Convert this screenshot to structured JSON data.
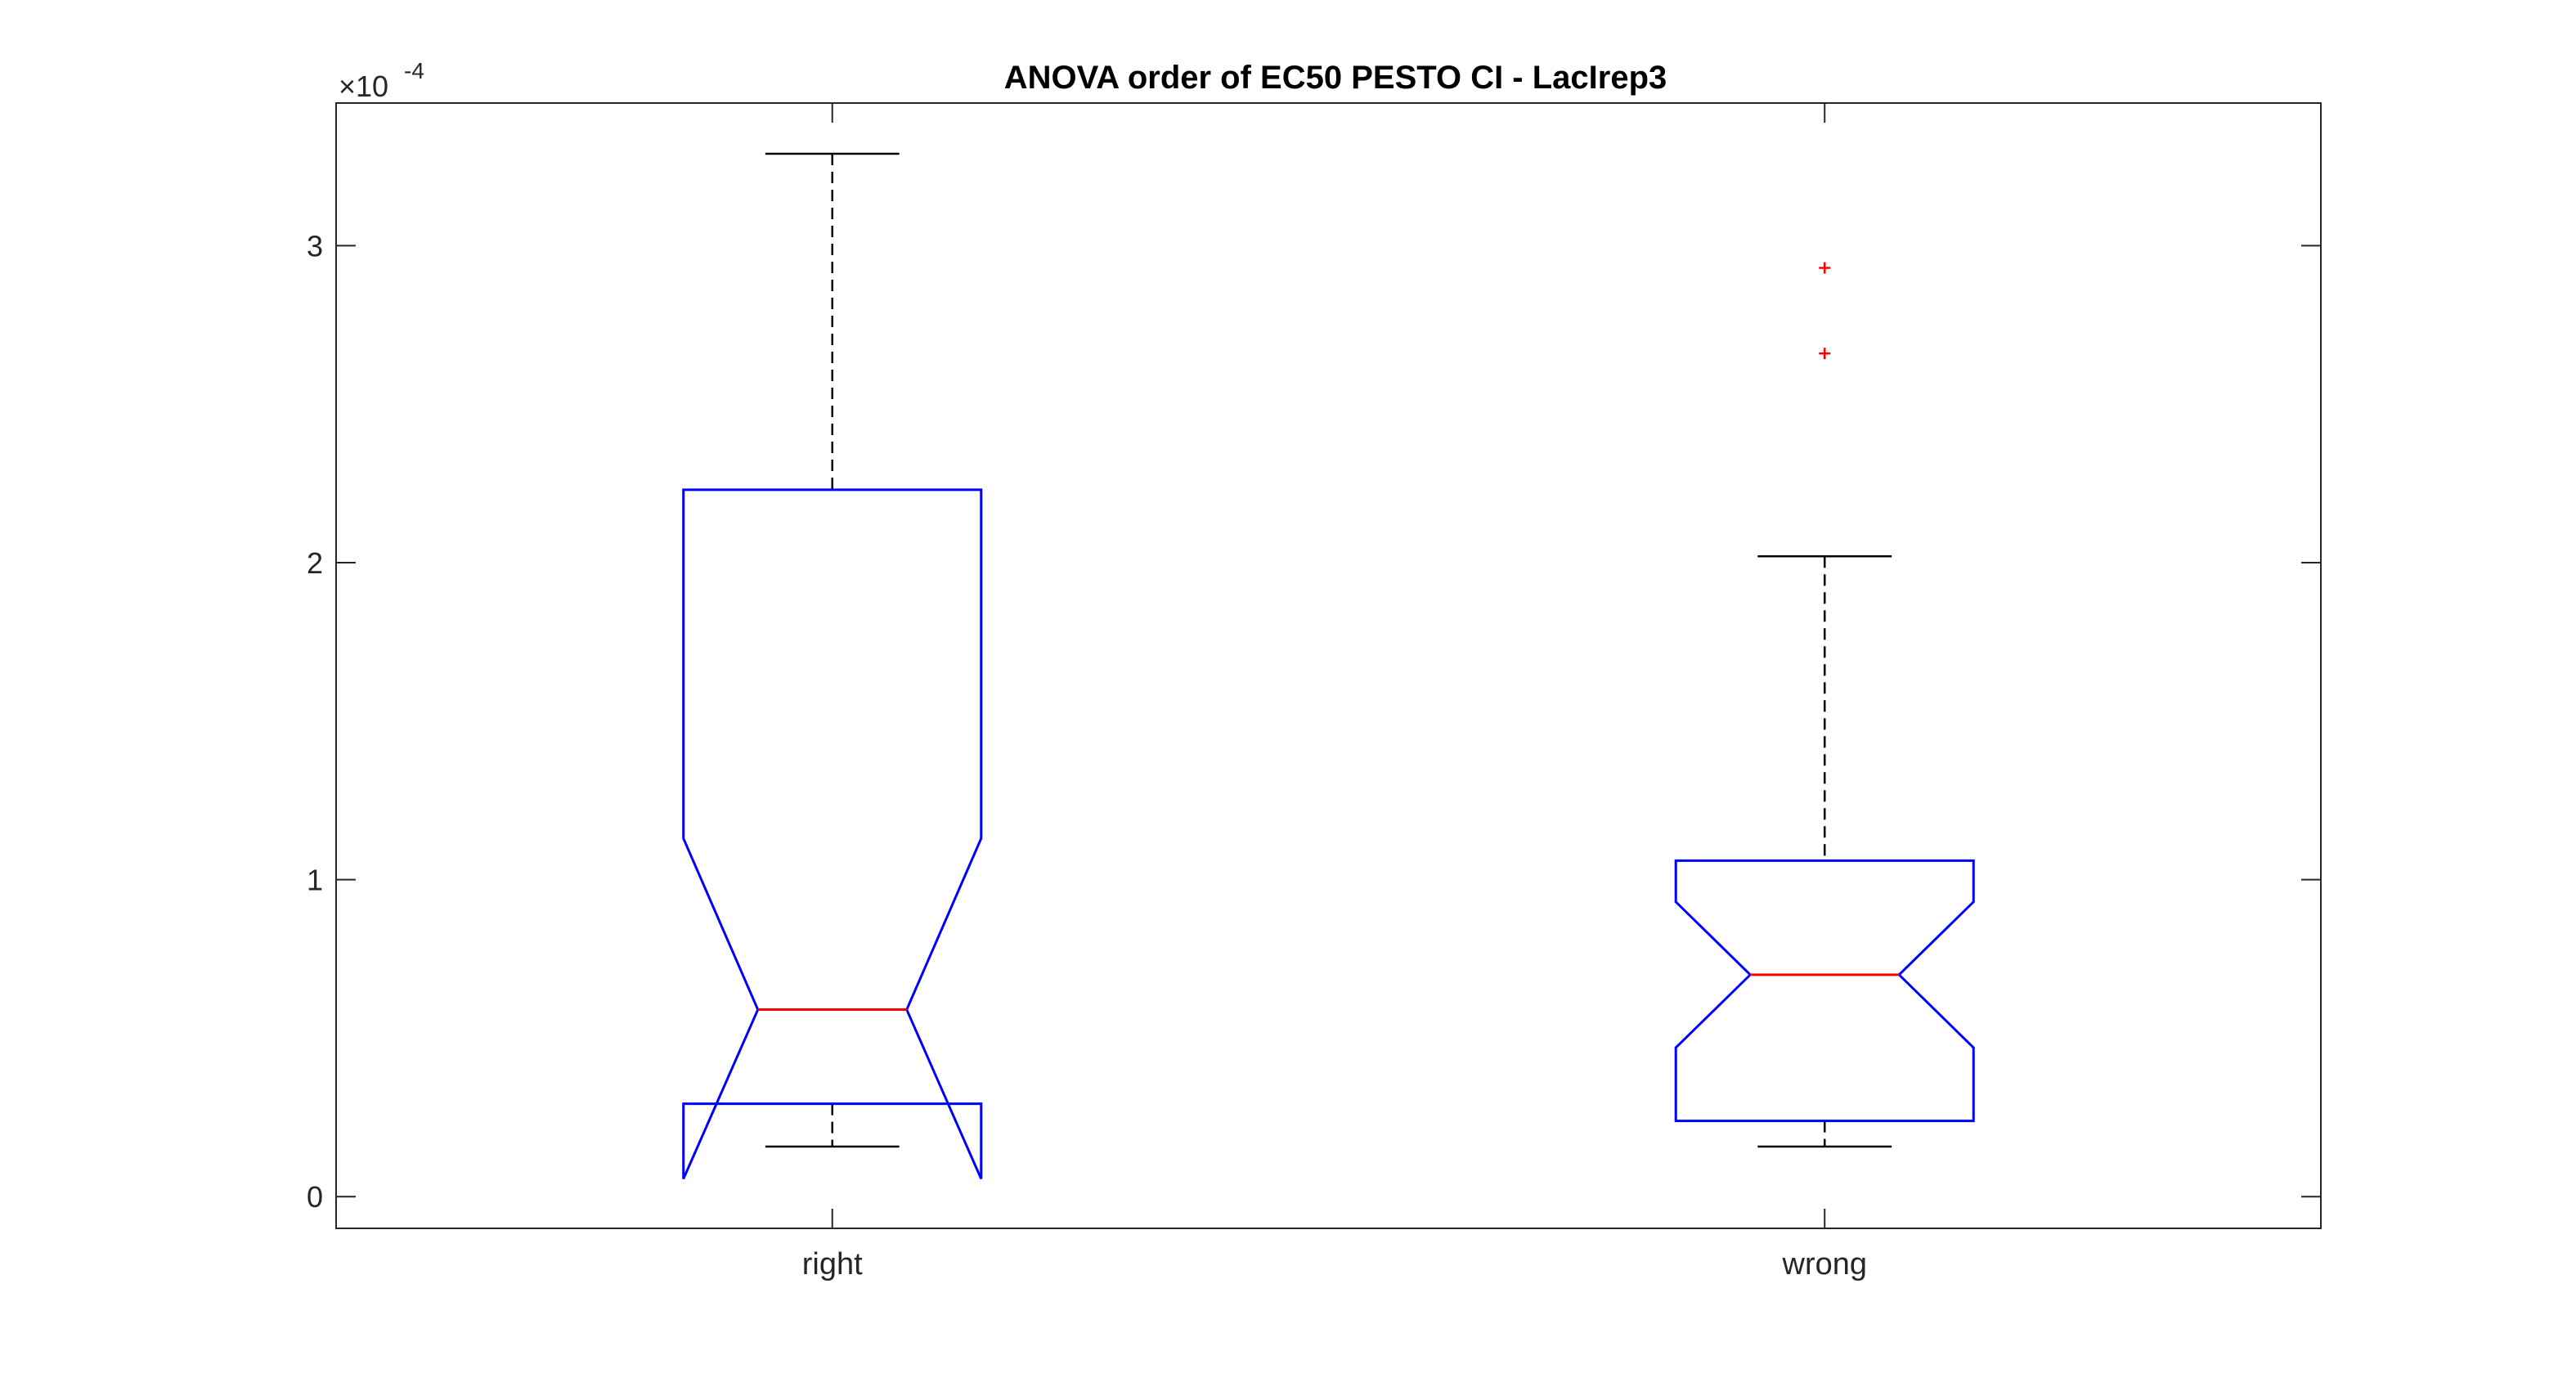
{
  "chart_data": {
    "type": "box",
    "title": "ANOVA order of EC50 PESTO CI - LacIrep3",
    "xlabel": "",
    "ylabel": "",
    "categories": [
      "right",
      "wrong"
    ],
    "y_exponent_label": "×10",
    "y_exponent_power": "-4",
    "ylim": [
      -1e-05,
      0.000345
    ],
    "yticks": [
      0,
      0.0001,
      0.0002,
      0.0003
    ],
    "ytick_labels": [
      "0",
      "1",
      "2",
      "3"
    ],
    "notched": true,
    "grid": false,
    "boxes": [
      {
        "category": "right",
        "whisker_low": 1.58e-05,
        "q1": 2.93e-05,
        "median": 5.9e-05,
        "q3": 0.000223,
        "whisker_high": 0.000329,
        "notch_low": 5.6e-06,
        "notch_high": 0.000113,
        "outliers": []
      },
      {
        "category": "wrong",
        "whisker_low": 1.58e-05,
        "q1": 2.39e-05,
        "median": 7e-05,
        "q3": 0.000106,
        "whisker_high": 0.000202,
        "notch_low": 4.7e-05,
        "notch_high": 9.3e-05,
        "outliers": [
          0.000293,
          0.000266
        ]
      }
    ],
    "colors": {
      "box": "#0000ff",
      "median": "#ff0000",
      "whisker": "#000000",
      "outlier": "#ff0000",
      "axes": "#262626"
    }
  }
}
